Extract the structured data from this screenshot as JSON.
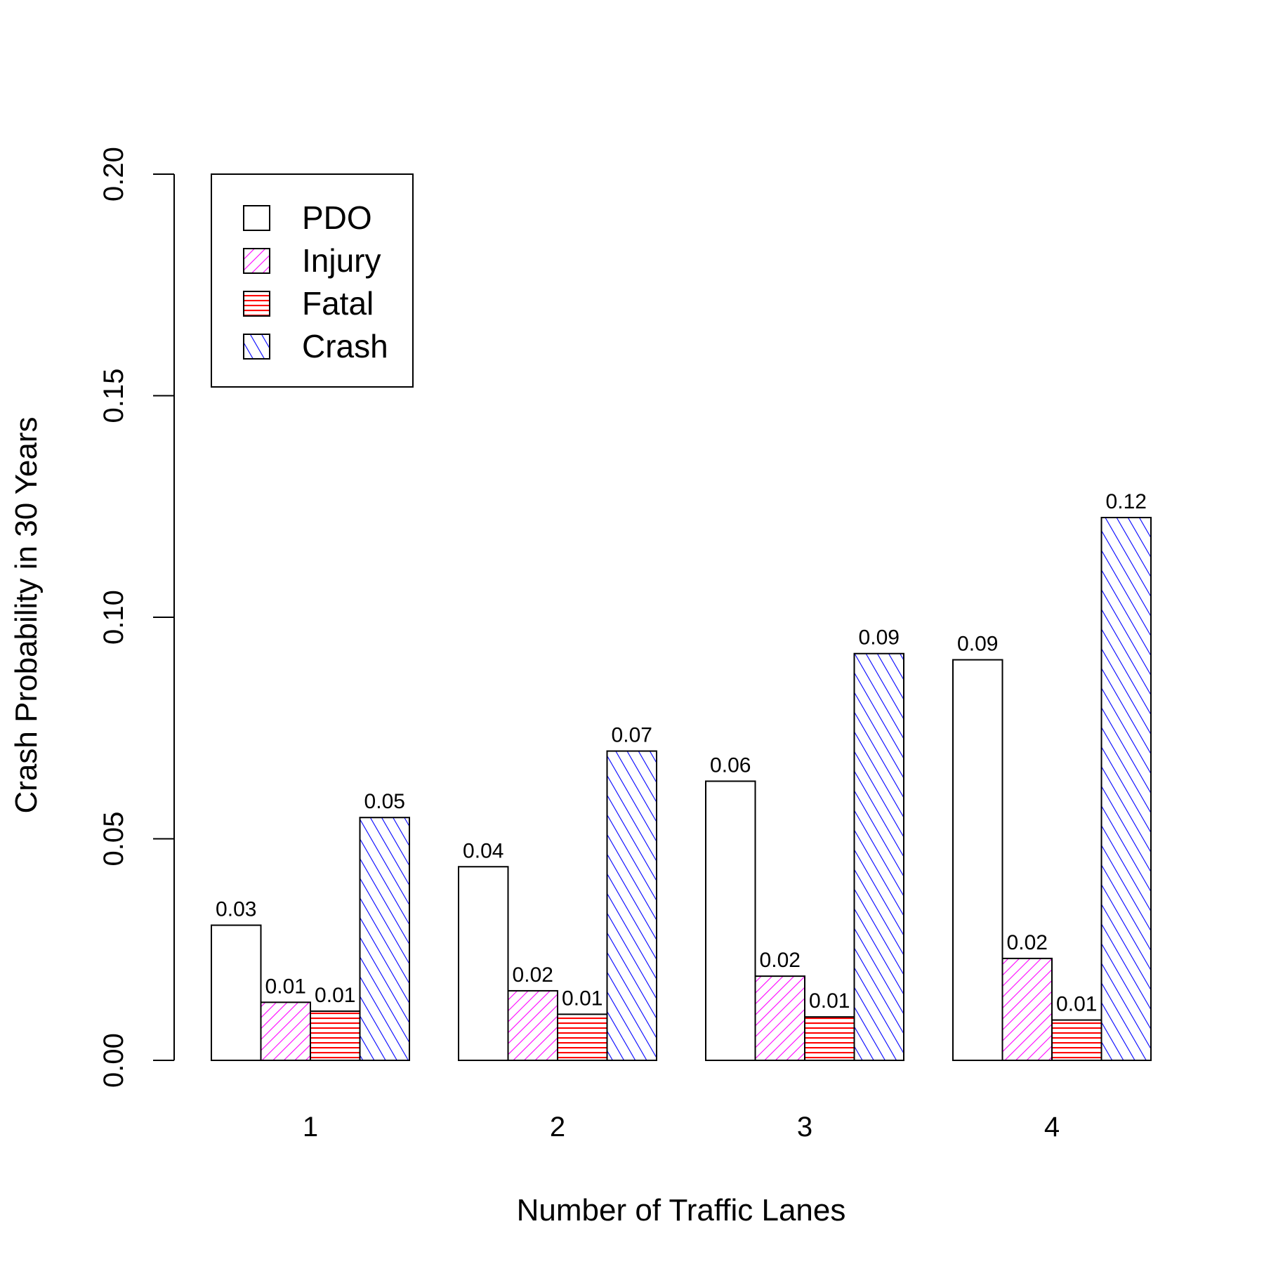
{
  "chart_data": {
    "type": "bar",
    "title": "",
    "xlabel": "Number of Traffic Lanes",
    "ylabel": "Crash Probability in 30 Years",
    "categories": [
      "1",
      "2",
      "3",
      "4"
    ],
    "ylim": [
      0,
      0.2
    ],
    "yticks": [
      "0.00",
      "0.05",
      "0.10",
      "0.15",
      "0.20"
    ],
    "grid": false,
    "legend_position": "top-left",
    "series": [
      {
        "name": "PDO",
        "values": [
          0.0305,
          0.0437,
          0.063,
          0.0904
        ],
        "labels": [
          "0.03",
          "0.04",
          "0.06",
          "0.09"
        ],
        "color": "#000000",
        "fill": "none"
      },
      {
        "name": "Injury",
        "values": [
          0.0131,
          0.0157,
          0.019,
          0.023
        ],
        "labels": [
          "0.01",
          "0.02",
          "0.02",
          "0.02"
        ],
        "color": "#ff00ff",
        "fill": "hatch-forward"
      },
      {
        "name": "Fatal",
        "values": [
          0.0111,
          0.0104,
          0.0098,
          0.0091
        ],
        "labels": [
          "0.01",
          "0.01",
          "0.01",
          "0.01"
        ],
        "color": "#ff0000",
        "fill": "hatch-horizontal"
      },
      {
        "name": "Crash",
        "values": [
          0.0548,
          0.0698,
          0.0918,
          0.1225
        ],
        "labels": [
          "0.05",
          "0.07",
          "0.09",
          "0.12"
        ],
        "color": "#0000ff",
        "fill": "hatch-backward"
      }
    ]
  }
}
